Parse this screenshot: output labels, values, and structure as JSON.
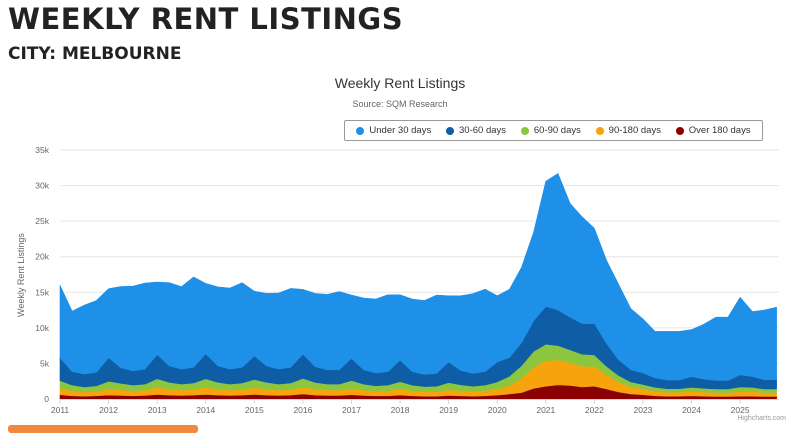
{
  "page": {
    "title": "WEEKLY RENT LISTINGS",
    "subtitle": "CITY: MELBOURNE"
  },
  "chart_data": {
    "type": "area",
    "title": "Weekly Rent Listings",
    "subtitle": "Source: SQM Research",
    "ylabel": "Weekly Rent Listings",
    "xlabel": "",
    "stacked": true,
    "ylim": [
      0,
      35000
    ],
    "xlim": [
      2011.0,
      2025.8
    ],
    "y_ticks": [
      "0",
      "5k",
      "10k",
      "15k",
      "20k",
      "25k",
      "30k",
      "35k"
    ],
    "x_ticks": [
      "2011",
      "2012",
      "2013",
      "2014",
      "2015",
      "2016",
      "2017",
      "2018",
      "2019",
      "2020",
      "2021",
      "2022",
      "2023",
      "2024",
      "2025"
    ],
    "grid": true,
    "legend_position": "top-right",
    "credits": "Highcharts.com",
    "x": [
      2011.0,
      2011.25,
      2011.5,
      2011.75,
      2012.0,
      2012.25,
      2012.5,
      2012.75,
      2013.0,
      2013.25,
      2013.5,
      2013.75,
      2014.0,
      2014.25,
      2014.5,
      2014.75,
      2015.0,
      2015.25,
      2015.5,
      2015.75,
      2016.0,
      2016.25,
      2016.5,
      2016.75,
      2017.0,
      2017.25,
      2017.5,
      2017.75,
      2018.0,
      2018.25,
      2018.5,
      2018.75,
      2019.0,
      2019.25,
      2019.5,
      2019.75,
      2020.0,
      2020.25,
      2020.5,
      2020.75,
      2021.0,
      2021.25,
      2021.5,
      2021.75,
      2022.0,
      2022.25,
      2022.5,
      2022.75,
      2023.0,
      2023.25,
      2023.5,
      2023.75,
      2024.0,
      2024.25,
      2024.5,
      2024.75,
      2025.0,
      2025.25,
      2025.5,
      2025.75
    ],
    "series": [
      {
        "name": "Over 180 days",
        "color": "#8b0000",
        "values": [
          600,
          450,
          400,
          450,
          550,
          500,
          450,
          500,
          650,
          550,
          500,
          550,
          650,
          550,
          500,
          550,
          650,
          550,
          500,
          550,
          700,
          550,
          500,
          500,
          600,
          500,
          450,
          450,
          550,
          450,
          400,
          400,
          500,
          450,
          400,
          450,
          550,
          700,
          900,
          1500,
          1800,
          2000,
          1900,
          1700,
          1800,
          1400,
          1000,
          700,
          600,
          450,
          400,
          400,
          450,
          400,
          350,
          350,
          400,
          400,
          350,
          350
        ]
      },
      {
        "name": "90-180 days",
        "color": "#f7a30d",
        "values": [
          900,
          700,
          600,
          650,
          850,
          800,
          700,
          750,
          1000,
          850,
          750,
          800,
          1000,
          850,
          750,
          800,
          950,
          850,
          750,
          800,
          1000,
          850,
          750,
          750,
          900,
          750,
          650,
          700,
          850,
          700,
          650,
          650,
          800,
          700,
          650,
          700,
          850,
          1200,
          2000,
          3000,
          3600,
          3500,
          3200,
          2900,
          2800,
          2000,
          1400,
          1000,
          800,
          650,
          550,
          550,
          650,
          600,
          550,
          550,
          650,
          650,
          550,
          550
        ]
      },
      {
        "name": "60-90 days",
        "color": "#8cc63f",
        "values": [
          1100,
          800,
          700,
          750,
          1100,
          900,
          800,
          850,
          1200,
          950,
          850,
          900,
          1200,
          950,
          850,
          900,
          1150,
          950,
          850,
          900,
          1200,
          950,
          850,
          850,
          1100,
          850,
          750,
          800,
          1050,
          800,
          700,
          750,
          1000,
          850,
          750,
          800,
          1000,
          1300,
          1800,
          2200,
          2300,
          2000,
          1800,
          1700,
          1600,
          1200,
          900,
          700,
          650,
          550,
          500,
          500,
          550,
          500,
          500,
          500,
          650,
          600,
          500,
          500
        ]
      },
      {
        "name": "30-60 days",
        "color": "#0e5da5",
        "values": [
          3200,
          1900,
          1800,
          1900,
          3300,
          2200,
          2000,
          2100,
          3400,
          2300,
          2100,
          2200,
          3500,
          2300,
          2100,
          2200,
          3300,
          2300,
          2100,
          2200,
          3400,
          2200,
          2000,
          2000,
          3100,
          2000,
          1800,
          1900,
          3000,
          1900,
          1700,
          1800,
          2900,
          2000,
          1800,
          1900,
          2800,
          2600,
          3200,
          4300,
          5300,
          5000,
          4600,
          4300,
          4400,
          3200,
          2200,
          1700,
          1600,
          1300,
          1200,
          1200,
          1500,
          1300,
          1200,
          1200,
          1700,
          1500,
          1300,
          1300
        ]
      },
      {
        "name": "Under 30 days",
        "color": "#1e90e8",
        "values": [
          10200,
          8500,
          9700,
          10100,
          9700,
          11400,
          11900,
          12100,
          10200,
          11700,
          11600,
          12700,
          9900,
          11100,
          11400,
          11900,
          9100,
          10200,
          10700,
          11100,
          9100,
          10300,
          10600,
          11000,
          8900,
          10100,
          10400,
          10800,
          9200,
          10200,
          10400,
          11000,
          9300,
          10500,
          11200,
          11600,
          9300,
          9600,
          10600,
          12500,
          17600,
          19200,
          16000,
          15000,
          13400,
          11700,
          10600,
          8600,
          7600,
          6550,
          6850,
          6850,
          6600,
          7700,
          8900,
          8900,
          10900,
          9150,
          9800,
          10200
        ]
      }
    ]
  }
}
